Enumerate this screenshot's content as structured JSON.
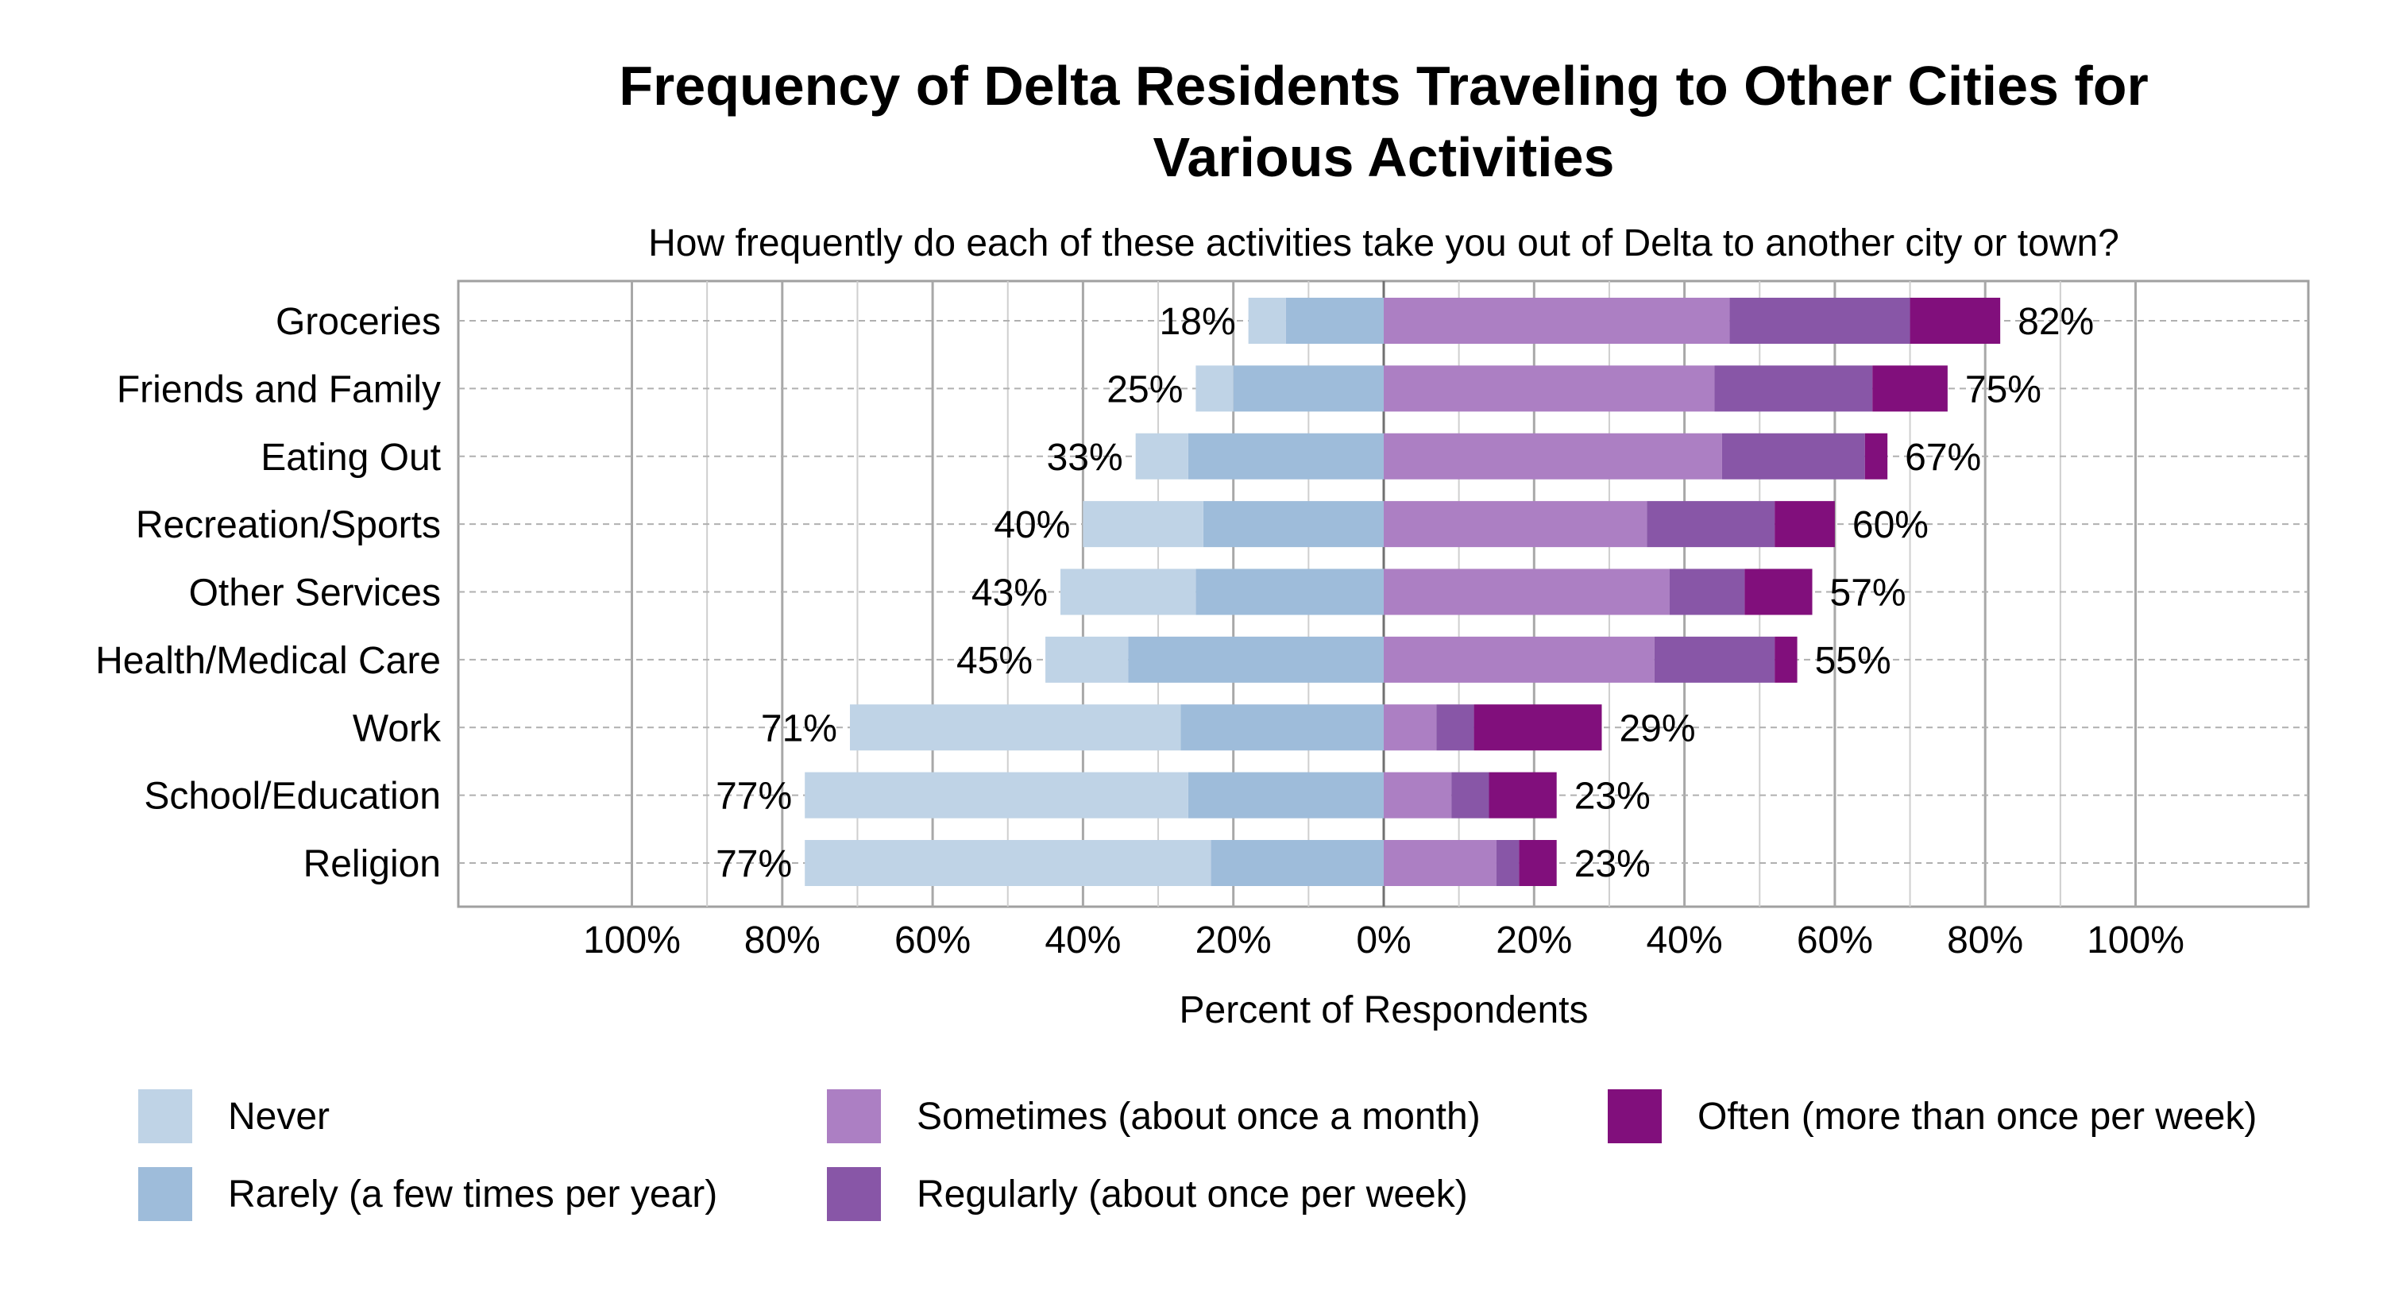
{
  "chart_data": {
    "type": "bar",
    "orientation": "horizontal",
    "stacked": "diverging",
    "title": "Frequency of Delta Residents Traveling to Other Cities for Various Activities",
    "title_lines": [
      "Frequency of Delta Residents Traveling to Other Cities for",
      "Various Activities"
    ],
    "subtitle": "How frequently do each of these activities take you out of Delta to another city or town?",
    "xlabel": "Percent of Respondents",
    "ylabel": "",
    "xlim": [
      -100,
      100
    ],
    "xticks": [
      "100%",
      "80%",
      "60%",
      "40%",
      "20%",
      "0%",
      "20%",
      "40%",
      "60%",
      "80%",
      "100%"
    ],
    "grid": true,
    "legend_position": "bottom",
    "categories": [
      "Groceries",
      "Friends and Family",
      "Eating Out",
      "Recreation/Sports",
      "Other Services",
      "Health/Medical Care",
      "Work",
      "School/Education",
      "Religion"
    ],
    "negative_series": [
      {
        "name": "Never",
        "color": "#bfd3e6",
        "values": [
          5,
          5,
          7,
          16,
          18,
          11,
          44,
          51,
          54
        ]
      },
      {
        "name": "Rarely (a few times per year)",
        "color": "#9ebcda",
        "values": [
          13,
          20,
          26,
          24,
          25,
          34,
          27,
          26,
          23
        ]
      }
    ],
    "positive_series": [
      {
        "name": "Sometimes (about once a month)",
        "color": "#ac7fc3",
        "values": [
          46,
          44,
          45,
          35,
          38,
          36,
          7,
          9,
          15
        ]
      },
      {
        "name": "Regularly (about once per week)",
        "color": "#8856a7",
        "values": [
          24,
          21,
          19,
          17,
          10,
          16,
          5,
          5,
          3
        ]
      },
      {
        "name": "Often (more than once per week)",
        "color": "#810f7c",
        "values": [
          12,
          10,
          3,
          8,
          9,
          3,
          17,
          9,
          5
        ]
      }
    ],
    "negative_totals": [
      "18%",
      "25%",
      "33%",
      "40%",
      "43%",
      "45%",
      "71%",
      "77%",
      "77%"
    ],
    "positive_totals": [
      "82%",
      "75%",
      "67%",
      "60%",
      "57%",
      "55%",
      "29%",
      "23%",
      "23%"
    ],
    "legend": [
      {
        "label": "Never",
        "color": "#bfd3e6"
      },
      {
        "label": "Rarely (a few times per year)",
        "color": "#9ebcda"
      },
      {
        "label": "Sometimes (about once a month)",
        "color": "#ac7fc3"
      },
      {
        "label": "Regularly (about once per week)",
        "color": "#8856a7"
      },
      {
        "label": "Often (more than once per week)",
        "color": "#810f7c"
      }
    ]
  }
}
